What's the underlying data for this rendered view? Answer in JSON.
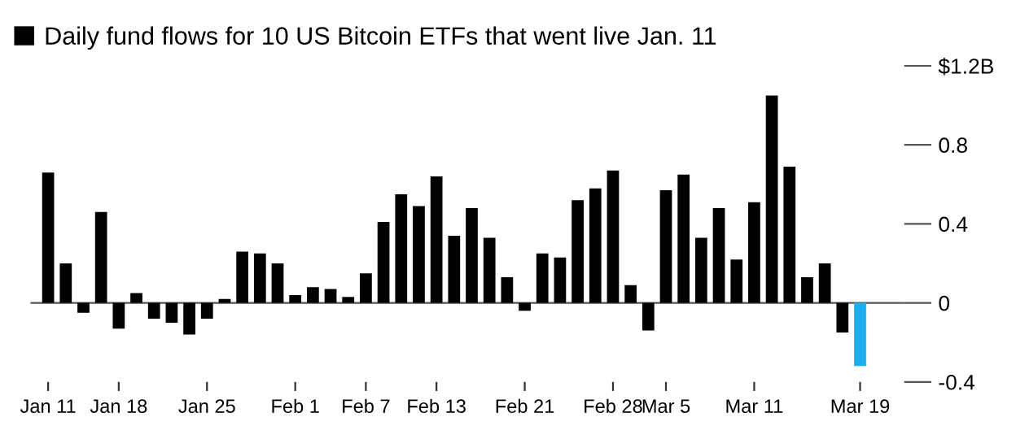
{
  "chart_data": {
    "type": "bar",
    "categories": [
      "Jan 11",
      null,
      null,
      null,
      "Jan 18",
      null,
      null,
      null,
      null,
      "Jan 25",
      null,
      null,
      null,
      null,
      "Feb 1",
      null,
      null,
      null,
      "Feb 7",
      null,
      null,
      null,
      "Feb 13",
      null,
      null,
      null,
      null,
      "Feb 21",
      null,
      null,
      null,
      null,
      "Feb 28",
      null,
      null,
      "Mar 5",
      null,
      null,
      null,
      null,
      "Mar 11",
      null,
      null,
      null,
      null,
      null,
      "Mar 19"
    ],
    "series": [
      {
        "name": "Daily fund flows for 10 US Bitcoin ETFs that went live Jan. 11",
        "color": "#000000",
        "colors": [
          "#000000",
          "#000000",
          "#000000",
          "#000000",
          "#000000",
          "#000000",
          "#000000",
          "#000000",
          "#000000",
          "#000000",
          "#000000",
          "#000000",
          "#000000",
          "#000000",
          "#000000",
          "#000000",
          "#000000",
          "#000000",
          "#000000",
          "#000000",
          "#000000",
          "#000000",
          "#000000",
          "#000000",
          "#000000",
          "#000000",
          "#000000",
          "#000000",
          "#000000",
          "#000000",
          "#000000",
          "#000000",
          "#000000",
          "#000000",
          "#000000",
          "#000000",
          "#000000",
          "#000000",
          "#000000",
          "#000000",
          "#000000",
          "#000000",
          "#000000",
          "#000000",
          "#000000",
          "#000000",
          "#1ab0f0"
        ],
        "values": [
          0.66,
          0.2,
          -0.05,
          0.46,
          -0.13,
          0.05,
          -0.08,
          -0.1,
          -0.16,
          -0.08,
          0.02,
          0.26,
          0.25,
          0.2,
          0.04,
          0.08,
          0.07,
          0.03,
          0.15,
          0.41,
          0.55,
          0.49,
          0.64,
          0.34,
          0.48,
          0.33,
          0.13,
          -0.04,
          0.25,
          0.23,
          0.52,
          0.58,
          0.67,
          0.09,
          -0.14,
          0.57,
          0.65,
          0.33,
          0.48,
          0.22,
          0.51,
          1.05,
          0.69,
          0.13,
          0.2,
          -0.15,
          -0.32
        ]
      }
    ],
    "ylim": [
      -0.4,
      1.2
    ],
    "yticks": [
      {
        "value": -0.4,
        "label": "-0.4"
      },
      0,
      0.4,
      0.8,
      {
        "value": 1.2,
        "label": "$1.2B"
      }
    ],
    "ref_lines": [
      {
        "axis": "y",
        "value": 0,
        "color": "#555555"
      }
    ],
    "legend": "top left",
    "grid": false
  }
}
